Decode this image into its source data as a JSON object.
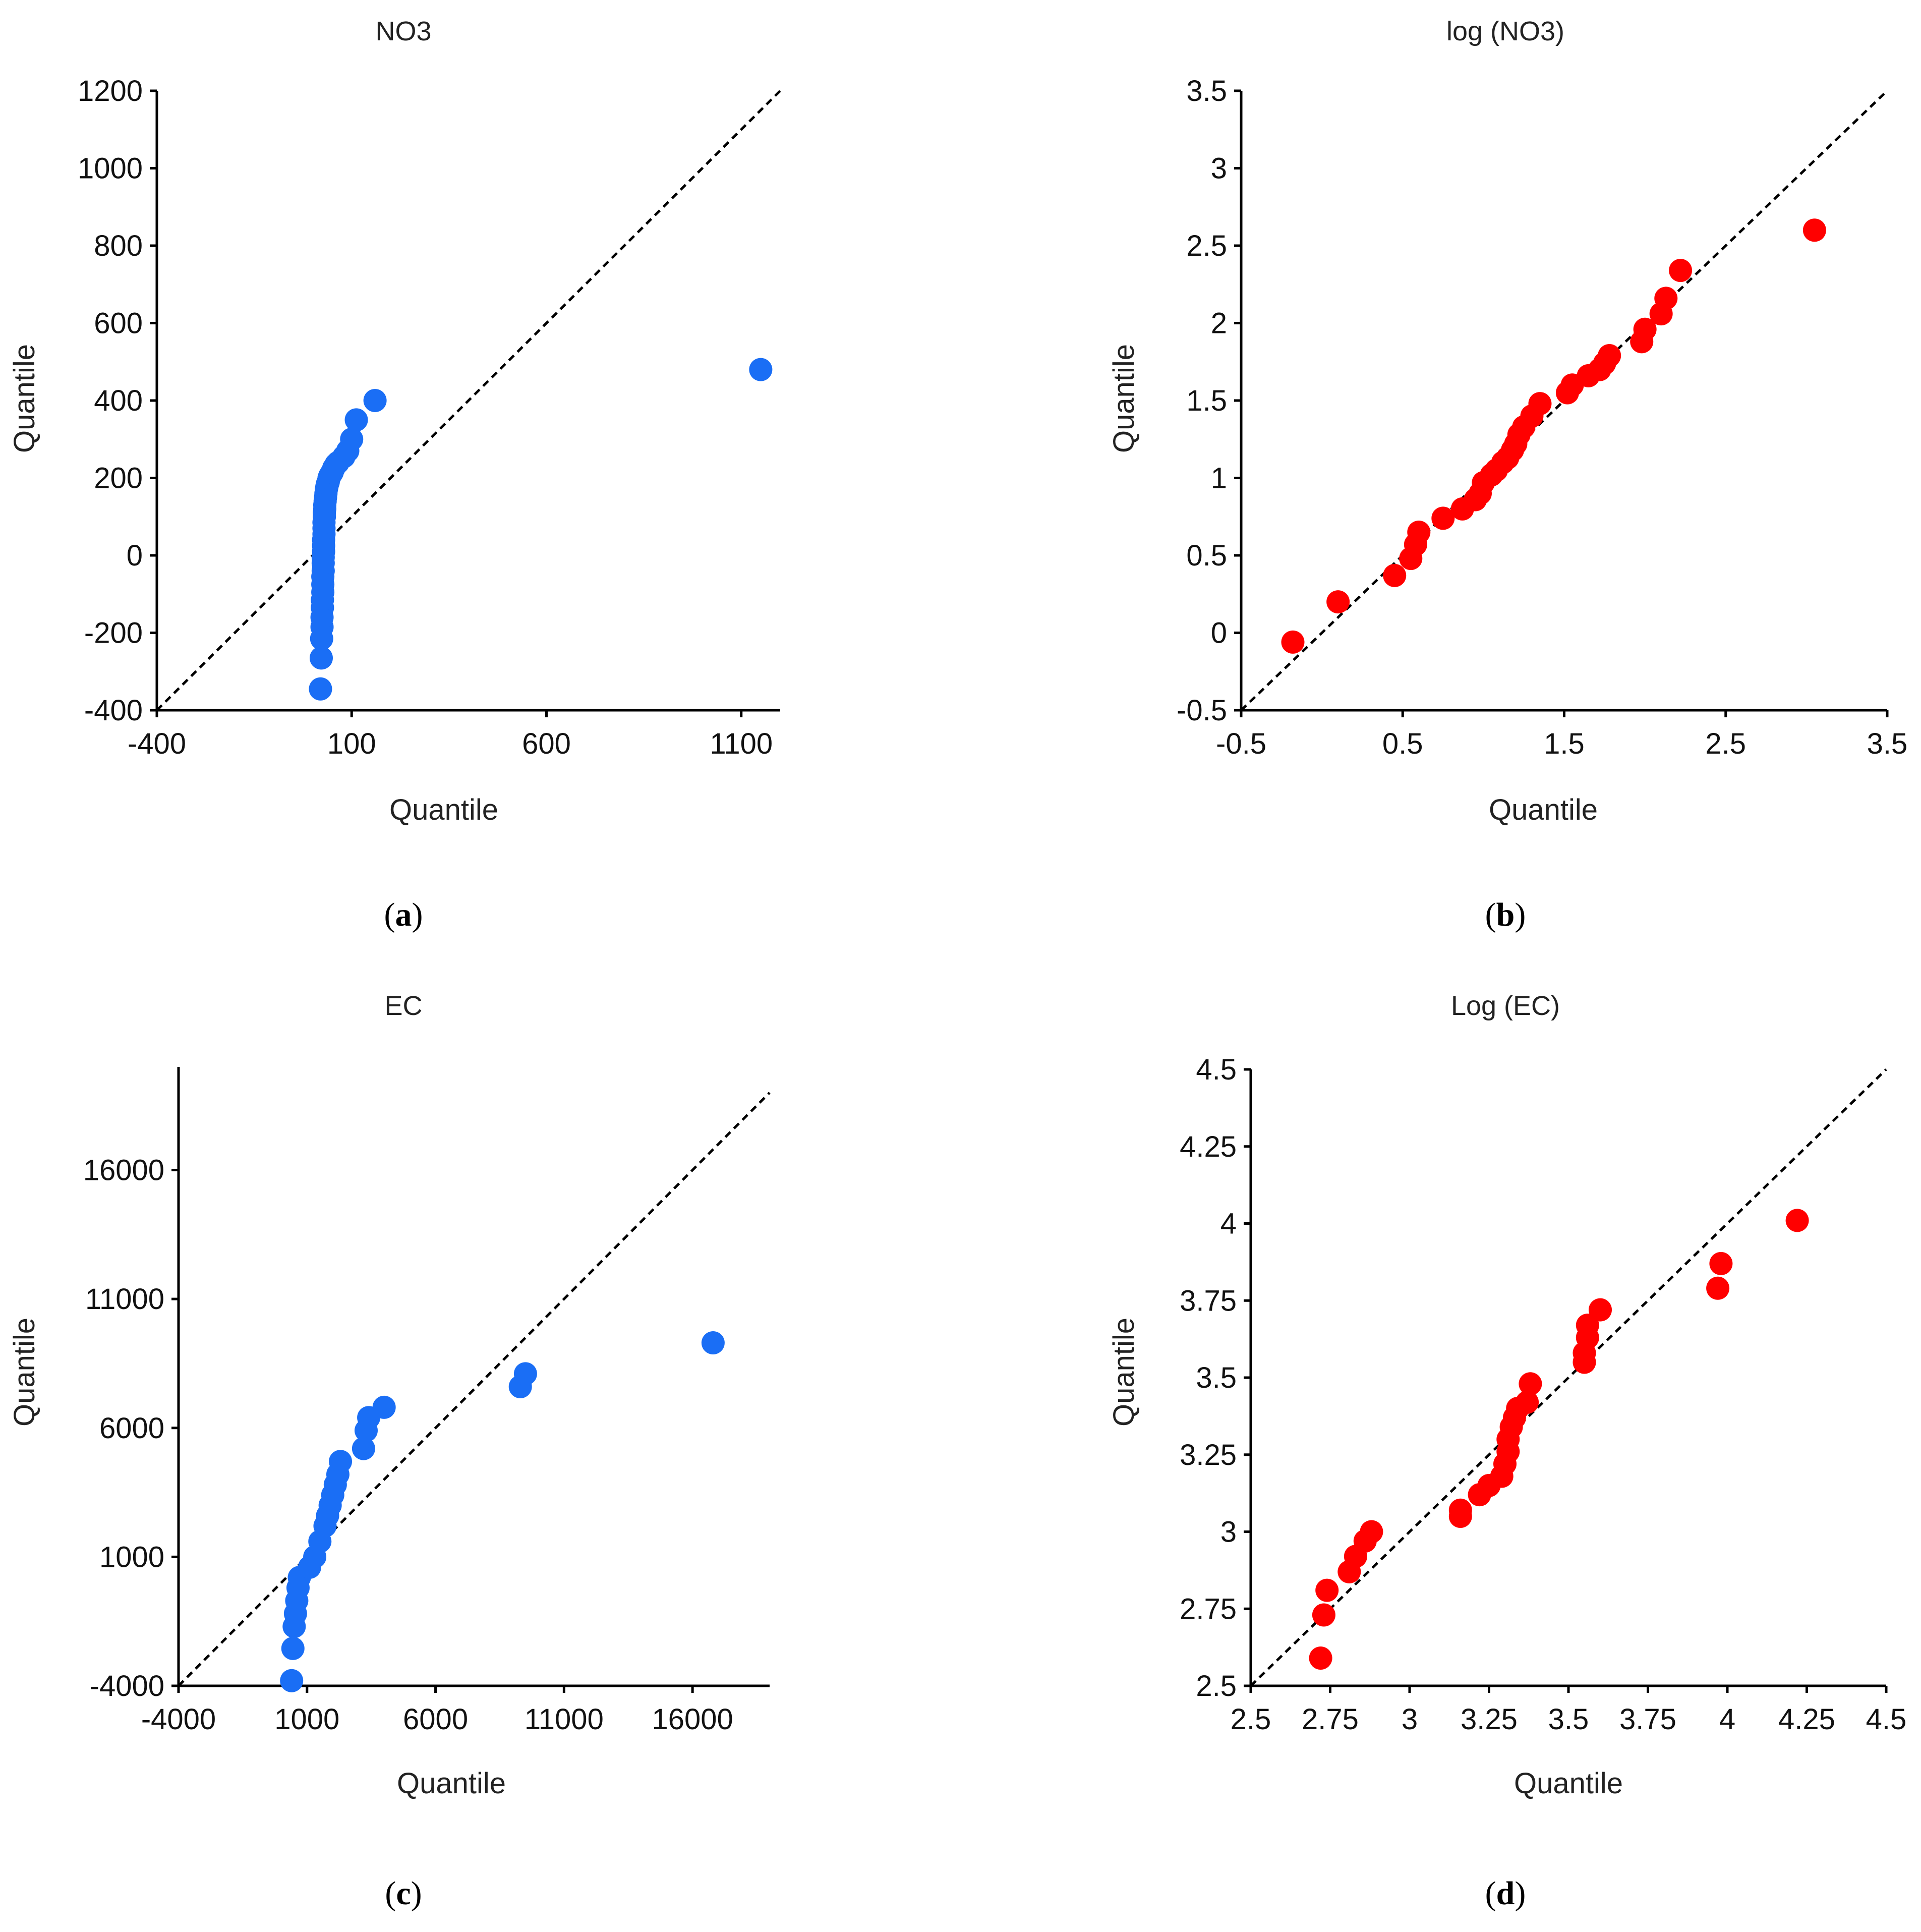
{
  "figure": {
    "panels": [
      {
        "caption_open": "(",
        "caption_letter": "a",
        "caption_close": ")"
      },
      {
        "caption_open": "(",
        "caption_letter": "b",
        "caption_close": ")"
      },
      {
        "caption_open": "(",
        "caption_letter": "c",
        "caption_close": ")"
      },
      {
        "caption_open": "(",
        "caption_letter": "d",
        "caption_close": ")"
      }
    ]
  },
  "chart_data": [
    {
      "type": "scatter",
      "title": "NO3",
      "xlabel": "Quantile",
      "ylabel": "Quantile",
      "xlim": [
        -400,
        1200
      ],
      "ylim": [
        -400,
        1200
      ],
      "xticks": [
        -400,
        100,
        600,
        1100
      ],
      "xtick_labels": [
        "-400",
        "100",
        "600",
        "1100"
      ],
      "yticks": [
        -400,
        -200,
        0,
        200,
        400,
        600,
        800,
        1000,
        1200
      ],
      "ytick_labels": [
        "-400",
        "-200",
        "0",
        "200",
        "400",
        "600",
        "800",
        "1000",
        "1200"
      ],
      "marker_color": "#1a6ef5",
      "reference_line": "y = x",
      "x": [
        20,
        22,
        23,
        24,
        24,
        25,
        25,
        26,
        26,
        26,
        27,
        27,
        27,
        28,
        28,
        28,
        29,
        29,
        29,
        30,
        30,
        31,
        31,
        32,
        33,
        34,
        35,
        36,
        37,
        38,
        40,
        42,
        44,
        47,
        50,
        54,
        60,
        65,
        80,
        90,
        100,
        112,
        160,
        1150
      ],
      "y": [
        -345,
        -265,
        -215,
        -185,
        -160,
        -135,
        -115,
        -95,
        -75,
        -55,
        -40,
        -20,
        -5,
        10,
        25,
        40,
        55,
        70,
        85,
        100,
        110,
        120,
        130,
        140,
        150,
        160,
        170,
        175,
        180,
        185,
        190,
        200,
        205,
        210,
        215,
        225,
        235,
        240,
        255,
        270,
        300,
        350,
        400,
        480
      ]
    },
    {
      "type": "scatter",
      "title": "log (NO3)",
      "xlabel": "Quantile",
      "ylabel": "Quantile",
      "xlim": [
        -0.5,
        3.5
      ],
      "ylim": [
        -0.5,
        3.5
      ],
      "xticks": [
        -0.5,
        0.5,
        1.5,
        2.5,
        3.5
      ],
      "xtick_labels": [
        "-0.5",
        "0.5",
        "1.5",
        "2.5",
        "3.5"
      ],
      "yticks": [
        -0.5,
        0,
        0.5,
        1,
        1.5,
        2,
        2.5,
        3,
        3.5
      ],
      "ytick_labels": [
        "-0.5",
        "0",
        "0.5",
        "1",
        "1.5",
        "2",
        "2.5",
        "3",
        "3.5"
      ],
      "marker_color": "#ff0000",
      "reference_line": "y = x",
      "x": [
        -0.18,
        0.1,
        0.45,
        0.55,
        0.58,
        0.6,
        0.75,
        0.87,
        0.95,
        0.98,
        1.0,
        1.05,
        1.08,
        1.12,
        1.15,
        1.18,
        1.2,
        1.22,
        1.25,
        1.3,
        1.35,
        1.52,
        1.55,
        1.65,
        1.72,
        1.75,
        1.78,
        1.98,
        2.0,
        2.1,
        2.13,
        2.22,
        3.05
      ],
      "y": [
        -0.06,
        0.2,
        0.37,
        0.48,
        0.57,
        0.65,
        0.74,
        0.8,
        0.86,
        0.9,
        0.97,
        1.02,
        1.05,
        1.1,
        1.13,
        1.18,
        1.22,
        1.28,
        1.33,
        1.4,
        1.48,
        1.55,
        1.6,
        1.66,
        1.7,
        1.74,
        1.79,
        1.88,
        1.96,
        2.06,
        2.16,
        2.34,
        2.6
      ]
    },
    {
      "type": "scatter",
      "title": "EC",
      "xlabel": "Quantile",
      "ylabel": "Quantile",
      "xlim": [
        -4000,
        19000
      ],
      "ylim": [
        -4000,
        20000
      ],
      "xticks": [
        -4000,
        1000,
        6000,
        11000,
        16000
      ],
      "xtick_labels": [
        "-4000",
        "1000",
        "6000",
        "11000",
        "16000"
      ],
      "yticks": [
        -4000,
        1000,
        6000,
        11000,
        16000
      ],
      "ytick_labels": [
        "-4000",
        "1000",
        "6000",
        "11000",
        "16000"
      ],
      "marker_color": "#1a6ef5",
      "reference_line": "y = x",
      "x": [
        400,
        450,
        500,
        550,
        600,
        650,
        700,
        1100,
        1300,
        1500,
        1700,
        1800,
        1900,
        2000,
        2100,
        2200,
        2300,
        3200,
        3300,
        3400,
        4000,
        9300,
        9500,
        16800
      ],
      "y": [
        -3800,
        -2550,
        -1700,
        -1200,
        -700,
        -200,
        200,
        600,
        1000,
        1600,
        2200,
        2600,
        3000,
        3400,
        3800,
        4200,
        4700,
        5200,
        5900,
        6400,
        6800,
        7600,
        8100,
        9300
      ]
    },
    {
      "type": "scatter",
      "title": "Log (EC)",
      "xlabel": "Quantile",
      "ylabel": "Quantile",
      "xlim": [
        2.5,
        4.5
      ],
      "ylim": [
        2.5,
        4.5
      ],
      "xticks": [
        2.5,
        2.75,
        3,
        3.25,
        3.5,
        3.75,
        4,
        4.25,
        4.5
      ],
      "xtick_labels": [
        "2.5",
        "2.75",
        "3",
        "3.25",
        "3.5",
        "3.75",
        "4",
        "4.25",
        "4.5"
      ],
      "yticks": [
        2.5,
        2.75,
        3,
        3.25,
        3.5,
        3.75,
        4,
        4.25,
        4.5
      ],
      "ytick_labels": [
        "2.5",
        "2.75",
        "3",
        "3.25",
        "3.5",
        "3.75",
        "4",
        "4.25",
        "4.5"
      ],
      "marker_color": "#ff0000",
      "reference_line": "y = x",
      "x": [
        2.72,
        2.73,
        2.74,
        2.81,
        2.83,
        2.86,
        2.88,
        3.16,
        3.16,
        3.22,
        3.25,
        3.29,
        3.3,
        3.31,
        3.31,
        3.32,
        3.33,
        3.34,
        3.37,
        3.38,
        3.55,
        3.55,
        3.56,
        3.56,
        3.6,
        3.97,
        3.98,
        4.22
      ],
      "y": [
        2.59,
        2.73,
        2.81,
        2.87,
        2.92,
        2.97,
        3.0,
        3.05,
        3.07,
        3.12,
        3.15,
        3.18,
        3.22,
        3.26,
        3.3,
        3.34,
        3.37,
        3.4,
        3.42,
        3.48,
        3.55,
        3.58,
        3.63,
        3.67,
        3.72,
        3.79,
        3.87,
        4.01
      ]
    }
  ]
}
